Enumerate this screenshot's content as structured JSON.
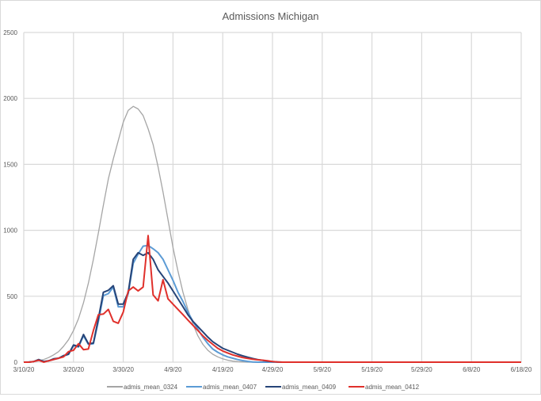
{
  "chart_data": {
    "type": "line",
    "title": "Admissions Michigan",
    "xlabel": "",
    "ylabel": "",
    "x_start": "3/10/20",
    "x_step_days": 1,
    "xlim": [
      "3/10/20",
      "6/18/20"
    ],
    "ylim": [
      0,
      2500
    ],
    "y_ticks": [
      "0",
      "500",
      "1000",
      "1500",
      "2000",
      "2500"
    ],
    "x_ticks": [
      "3/10/20",
      "3/20/20",
      "3/30/20",
      "4/9/20",
      "4/19/20",
      "4/29/20",
      "5/9/20",
      "5/19/20",
      "5/29/20",
      "6/8/20",
      "6/18/20"
    ],
    "grid": true,
    "legend_position": "bottom",
    "series": [
      {
        "name": "admis_mean_0324",
        "color": "#a5a5a5",
        "values": [
          0,
          2,
          5,
          10,
          20,
          35,
          55,
          80,
          120,
          170,
          240,
          330,
          450,
          600,
          780,
          980,
          1190,
          1390,
          1540,
          1680,
          1820,
          1910,
          1940,
          1920,
          1870,
          1770,
          1650,
          1480,
          1290,
          1080,
          870,
          690,
          530,
          400,
          290,
          200,
          135,
          90,
          60,
          40,
          25,
          15,
          8,
          4,
          2,
          0,
          0,
          0,
          0,
          0,
          0,
          0,
          0
        ]
      },
      {
        "name": "admis_mean_0407",
        "color": "#5b9bd5",
        "values": [
          0,
          2,
          5,
          15,
          5,
          10,
          20,
          30,
          45,
          60,
          125,
          115,
          200,
          135,
          140,
          310,
          505,
          520,
          570,
          420,
          420,
          520,
          750,
          820,
          880,
          885,
          860,
          830,
          780,
          700,
          620,
          530,
          460,
          380,
          310,
          250,
          190,
          140,
          100,
          75,
          55,
          40,
          30,
          20,
          12,
          6,
          2,
          0,
          0,
          0,
          0,
          0,
          0
        ]
      },
      {
        "name": "admis_mean_0409",
        "color": "#264478",
        "values": [
          0,
          0,
          5,
          20,
          5,
          10,
          25,
          30,
          50,
          60,
          130,
          120,
          210,
          140,
          145,
          330,
          530,
          545,
          580,
          440,
          440,
          530,
          780,
          830,
          810,
          830,
          780,
          700,
          650,
          600,
          540,
          480,
          420,
          360,
          310,
          270,
          230,
          190,
          155,
          130,
          105,
          90,
          75,
          60,
          48,
          38,
          28,
          20,
          14,
          8,
          4,
          2,
          0
        ]
      },
      {
        "name": "admis_mean_0412",
        "color": "#e0302b",
        "values": [
          0,
          0,
          5,
          15,
          0,
          10,
          20,
          30,
          40,
          80,
          90,
          140,
          95,
          100,
          240,
          360,
          365,
          400,
          310,
          295,
          380,
          540,
          570,
          540,
          570,
          960,
          510,
          465,
          625,
          480,
          440,
          400,
          360,
          320,
          280,
          240,
          200,
          165,
          135,
          105,
          85,
          70,
          55,
          45,
          35,
          28,
          22,
          18,
          15,
          10,
          5,
          2,
          0,
          0,
          0,
          0,
          0,
          0,
          0,
          0,
          0,
          0,
          0,
          0,
          0,
          0,
          0,
          0,
          0,
          0,
          0,
          0,
          0,
          0,
          0,
          0,
          0,
          0,
          0,
          0,
          0,
          0,
          0,
          0,
          0,
          0,
          0,
          0,
          0,
          0,
          0,
          0,
          0,
          0,
          0,
          0,
          0,
          0,
          0,
          0,
          0
        ]
      }
    ]
  }
}
